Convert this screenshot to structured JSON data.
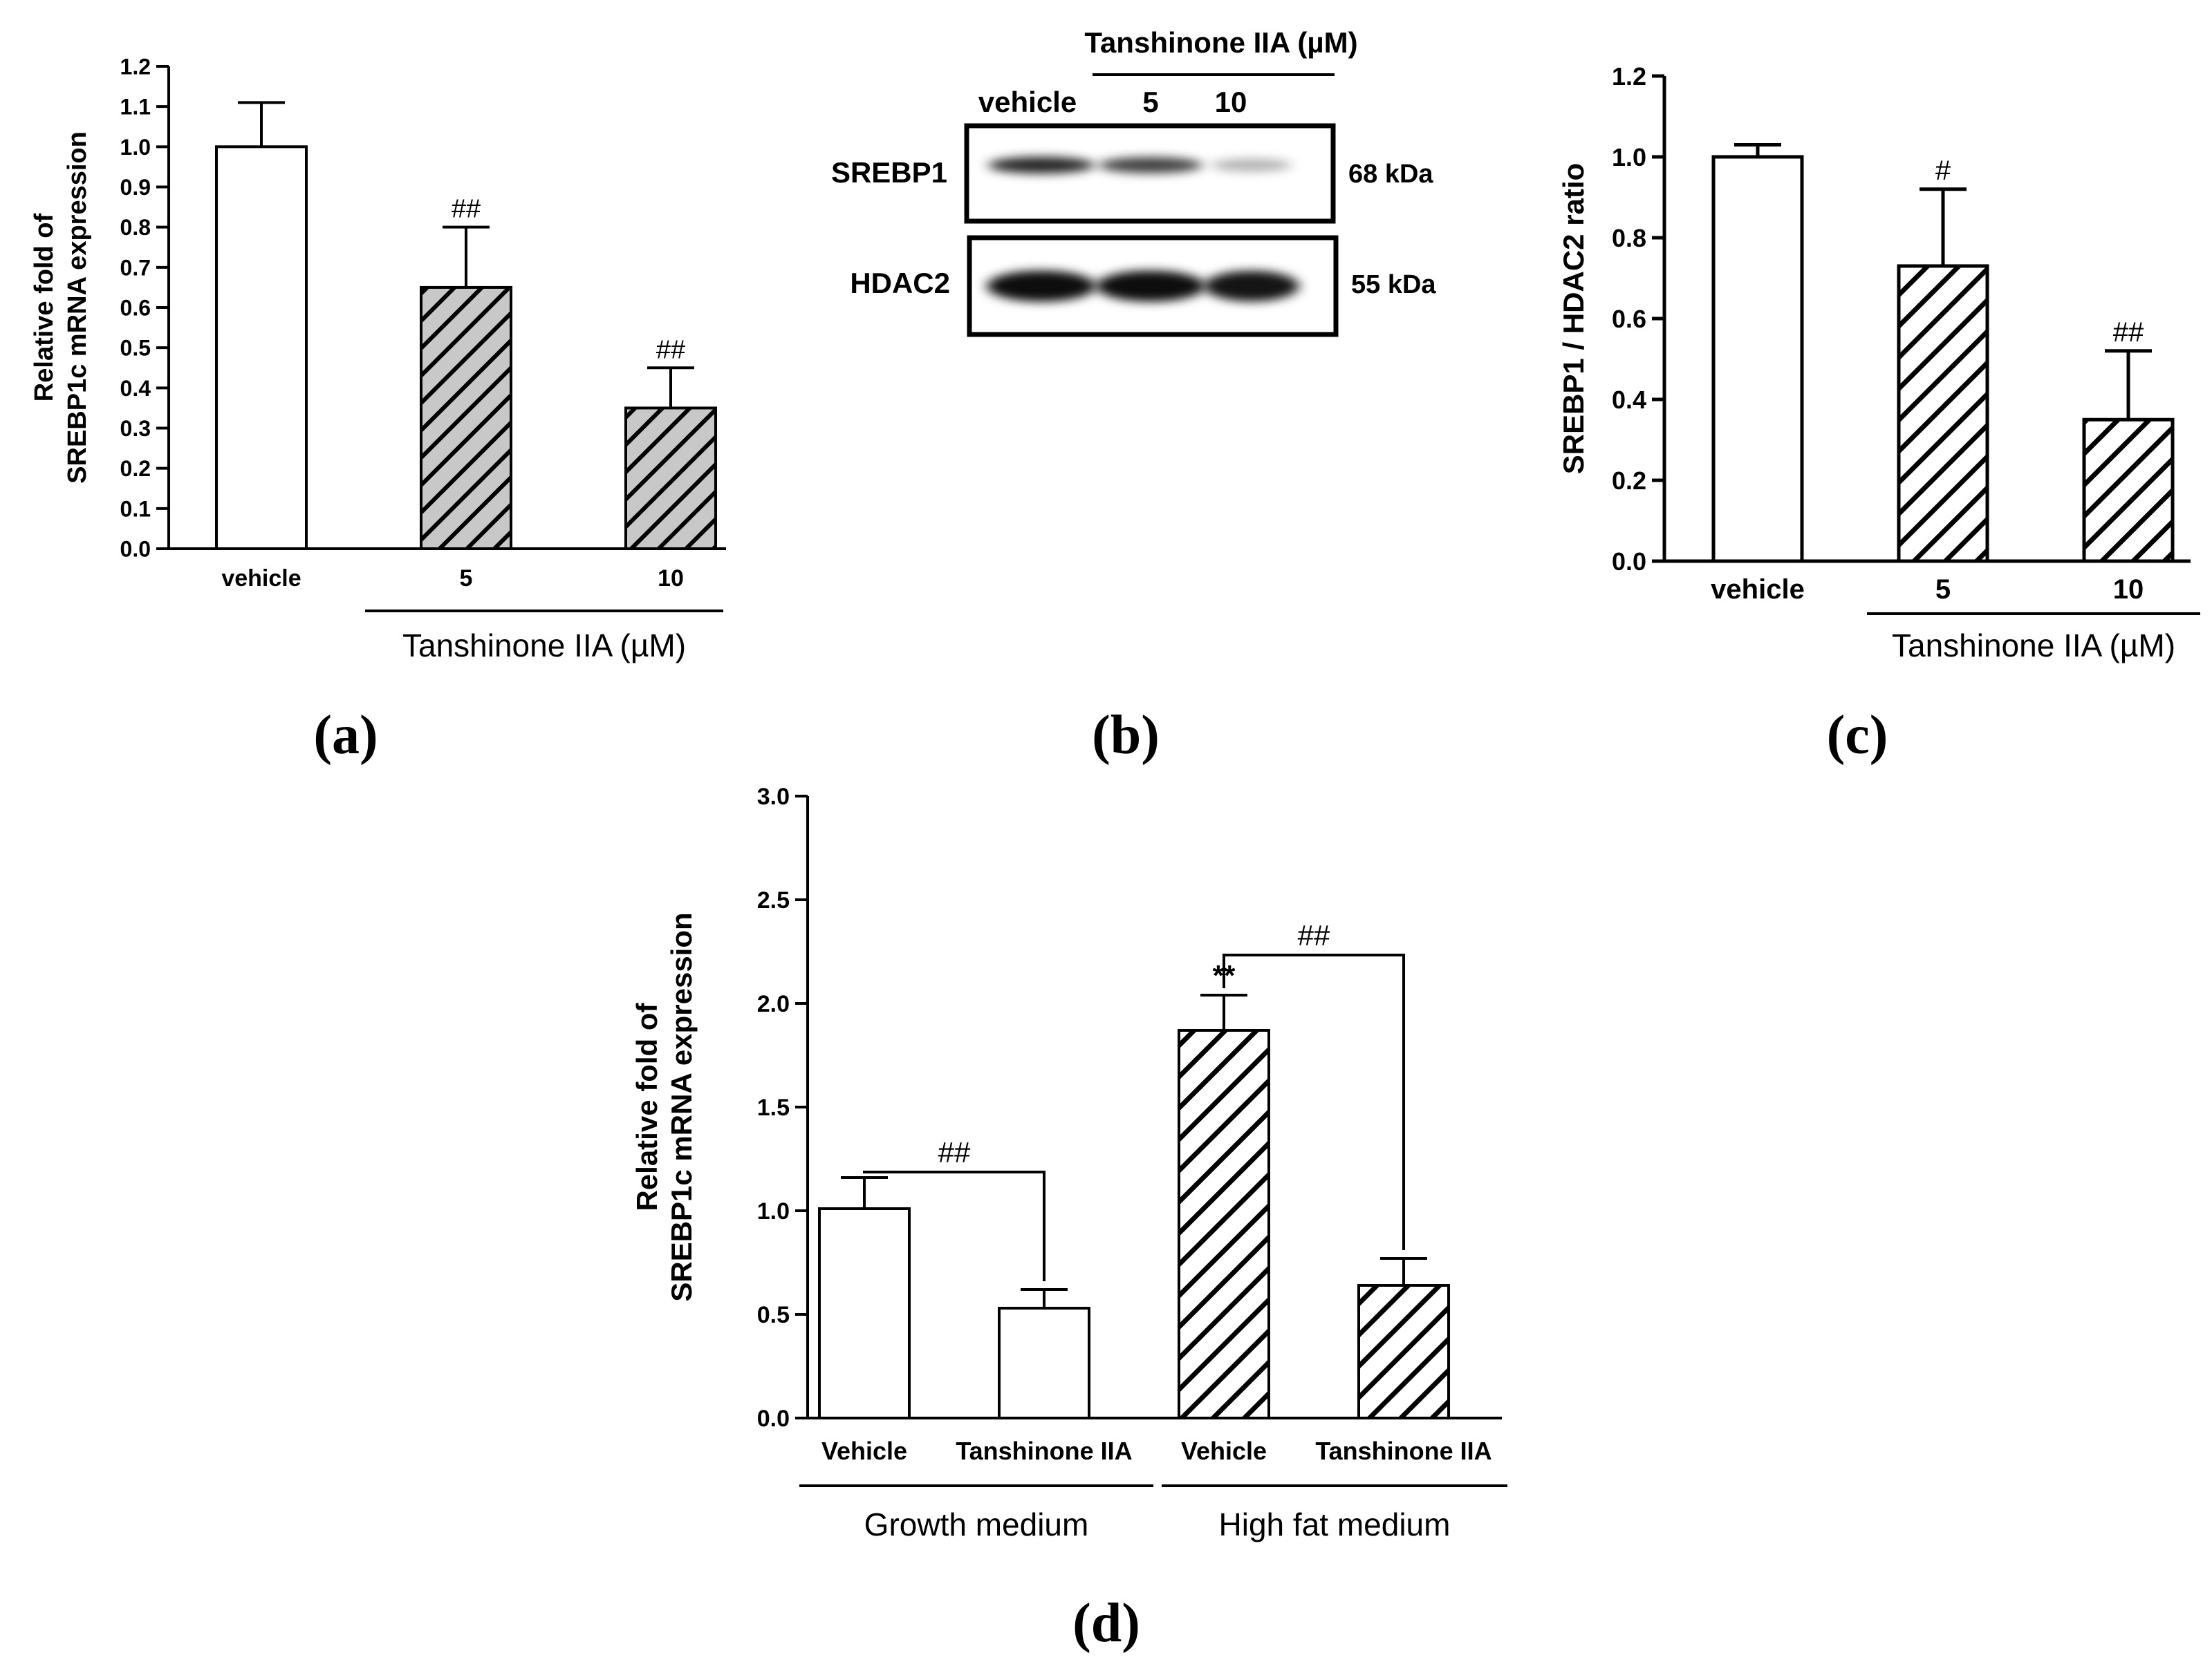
{
  "chart_data": [
    {
      "panel": "(a)",
      "type": "bar",
      "categories": [
        "vehicle",
        "5",
        "10"
      ],
      "values": [
        1.0,
        0.65,
        0.35
      ],
      "errors": [
        0.11,
        0.15,
        0.1
      ],
      "significance": [
        "",
        "##",
        "##"
      ],
      "fills": [
        "white",
        "hatch-gray",
        "hatch-gray"
      ],
      "ylabel": "Relative fold of SREBP1c mRNA expression",
      "ylabel_lines": [
        "Relative fold of",
        "SREBP1c mRNA expression"
      ],
      "ylim": [
        0,
        1.2
      ],
      "yticks": [
        "0.0",
        "0.1",
        "0.2",
        "0.3",
        "0.4",
        "0.5",
        "0.6",
        "0.7",
        "0.8",
        "0.9",
        "1.0",
        "1.1",
        "1.2"
      ],
      "group_label": "Tanshinone IIA (µM)"
    },
    {
      "panel": "(b)",
      "type": "blot",
      "header": "Tanshinone IIA (µM)",
      "lanes": [
        "vehicle",
        "5",
        "10"
      ],
      "rows": [
        {
          "label": "SREBP1",
          "size": "68 kDa",
          "intensities": [
            0.85,
            0.75,
            0.3
          ]
        },
        {
          "label": "HDAC2",
          "size": "55 kDa",
          "intensities": [
            0.95,
            0.95,
            0.92
          ]
        }
      ]
    },
    {
      "panel": "(c)",
      "type": "bar",
      "categories": [
        "vehicle",
        "5",
        "10"
      ],
      "values": [
        1.0,
        0.73,
        0.35
      ],
      "errors": [
        0.03,
        0.19,
        0.17
      ],
      "significance": [
        "",
        "#",
        "##"
      ],
      "fills": [
        "white",
        "hatch-black",
        "hatch-black"
      ],
      "ylabel": "SREBP1 / HDAC2 ratio",
      "ylim": [
        0,
        1.2
      ],
      "yticks": [
        "0.0",
        "0.2",
        "0.4",
        "0.6",
        "0.8",
        "1.0",
        "1.2"
      ],
      "group_label": "Tanshinone IIA (µM)"
    },
    {
      "panel": "(d)",
      "type": "bar",
      "categories": [
        "Vehicle",
        "Tanshinone IIA",
        "Vehicle",
        "Tanshinone IIA"
      ],
      "values": [
        1.01,
        0.53,
        1.87,
        0.64
      ],
      "errors": [
        0.15,
        0.09,
        0.17,
        0.13
      ],
      "significance": [
        "",
        "",
        "**",
        ""
      ],
      "fills": [
        "white",
        "white",
        "hatch-black",
        "hatch-black"
      ],
      "ylabel": "Relative fold of SREBP1c mRNA expression",
      "ylabel_lines": [
        "Relative fold of",
        "SREBP1c mRNA expression"
      ],
      "ylim": [
        0,
        3.0
      ],
      "yticks": [
        "0.0",
        "0.5",
        "1.0",
        "1.5",
        "2.0",
        "2.5",
        "3.0"
      ],
      "groups": [
        "Growth medium",
        "High fat medium"
      ],
      "comparisons": [
        {
          "from": 0,
          "to": 1,
          "label": "##"
        },
        {
          "from": 2,
          "to": 3,
          "label": "##"
        }
      ]
    }
  ]
}
